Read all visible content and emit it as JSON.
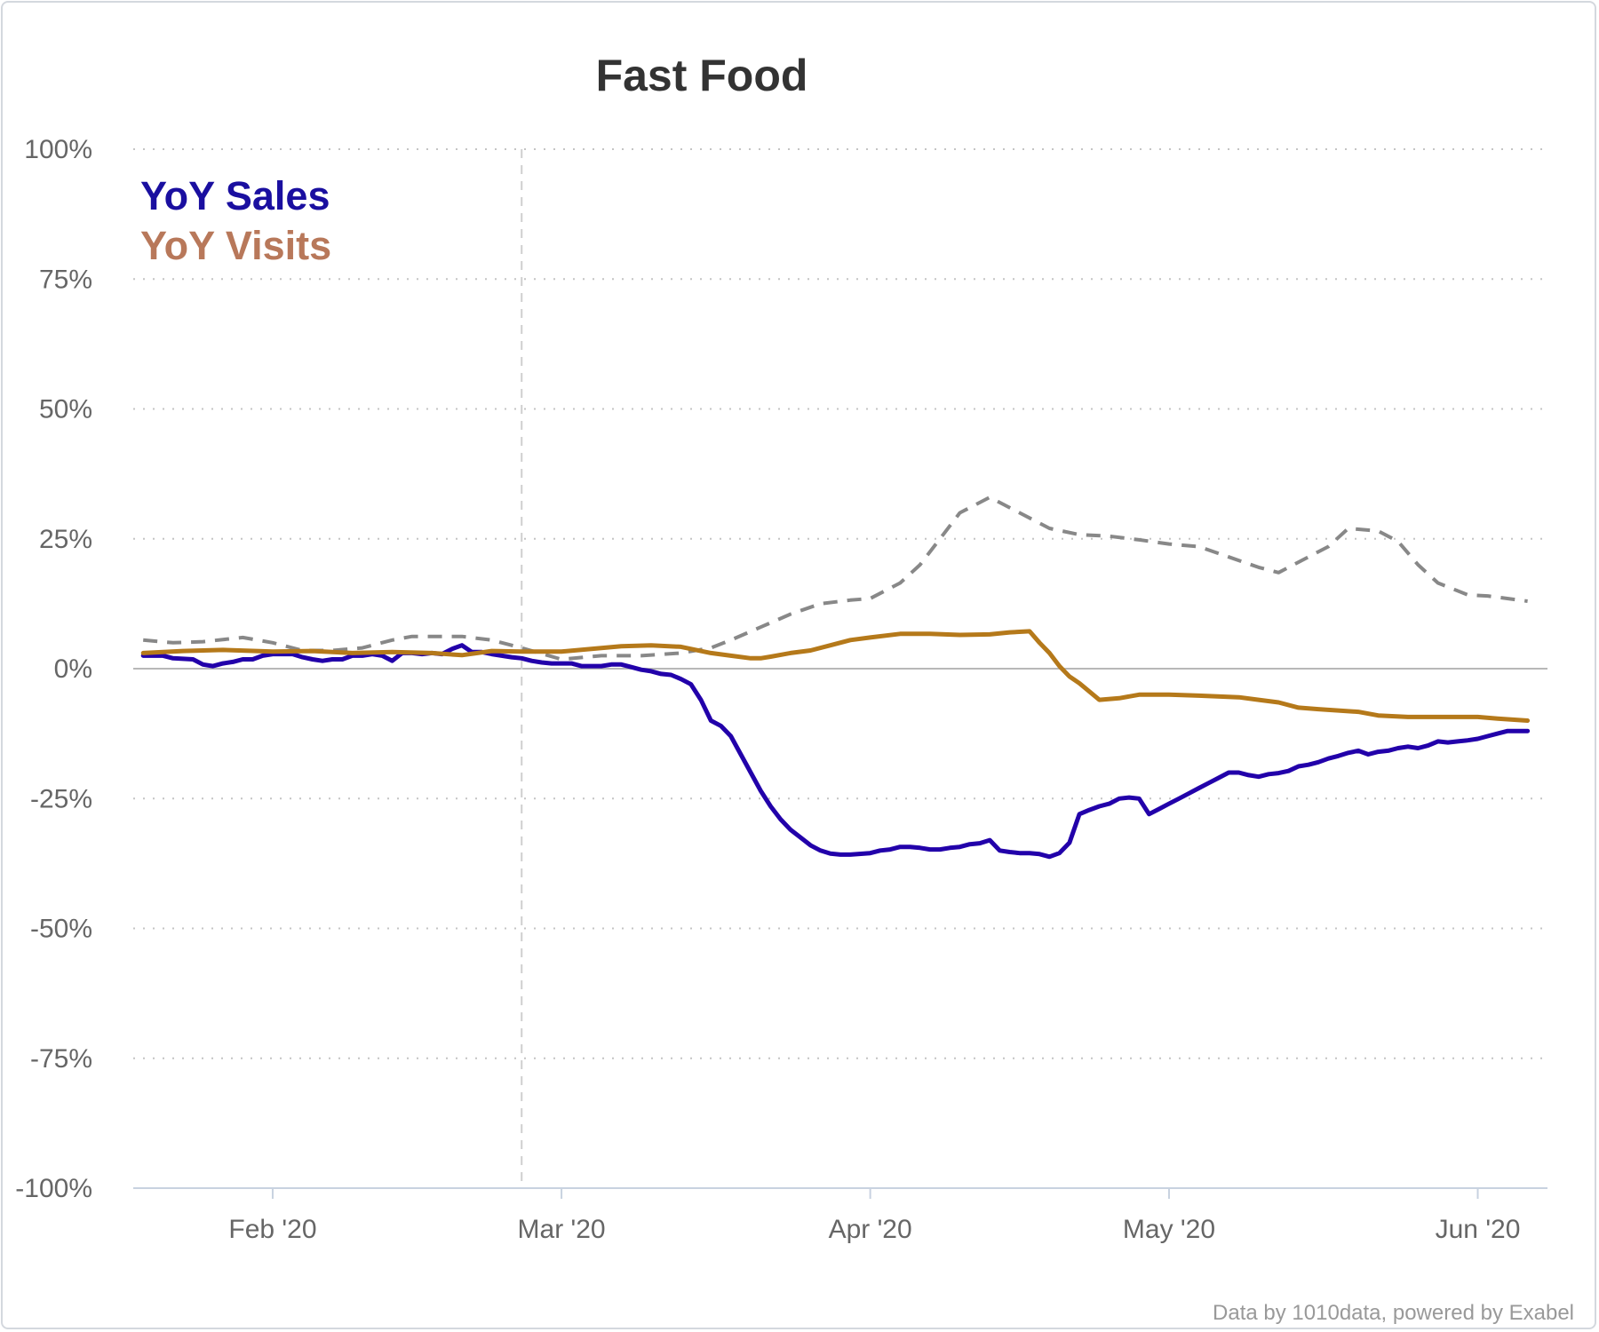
{
  "chart_data": {
    "type": "line",
    "title": "Fast Food",
    "credit": "Data by 1010data, powered by Exabel",
    "xlabel": "",
    "ylabel": "",
    "ylim": [
      -100,
      100
    ],
    "y_ticks": [
      100,
      75,
      50,
      25,
      0,
      -25,
      -50,
      -75,
      -100
    ],
    "y_tick_labels": [
      "100%",
      "75%",
      "50%",
      "25%",
      "0%",
      "-25%",
      "-50%",
      "-75%",
      "-100%"
    ],
    "xlim": [
      "2020-01-18",
      "2020-06-08"
    ],
    "x_ticks": [
      "2020-02-01",
      "2020-03-01",
      "2020-04-01",
      "2020-05-01",
      "2020-06-01"
    ],
    "x_tick_labels": [
      "Feb '20",
      "Mar '20",
      "Apr '20",
      "May '20",
      "Jun '20"
    ],
    "marker_date": "2020-02-26",
    "grid": true,
    "legend_position": "top-left",
    "series": [
      {
        "name": "YoY Sales",
        "color": "#2200aa",
        "style": "solid",
        "points": [
          [
            "2020-01-19",
            2.5
          ],
          [
            "2020-01-21",
            2.5
          ],
          [
            "2020-01-22",
            2.0
          ],
          [
            "2020-01-24",
            1.8
          ],
          [
            "2020-01-25",
            0.8
          ],
          [
            "2020-01-26",
            0.5
          ],
          [
            "2020-01-27",
            1.0
          ],
          [
            "2020-01-28",
            1.3
          ],
          [
            "2020-01-29",
            1.8
          ],
          [
            "2020-01-30",
            1.8
          ],
          [
            "2020-01-31",
            2.5
          ],
          [
            "2020-02-01",
            2.8
          ],
          [
            "2020-02-03",
            2.8
          ],
          [
            "2020-02-04",
            2.2
          ],
          [
            "2020-02-05",
            1.8
          ],
          [
            "2020-02-06",
            1.5
          ],
          [
            "2020-02-07",
            1.8
          ],
          [
            "2020-02-08",
            1.8
          ],
          [
            "2020-02-09",
            2.5
          ],
          [
            "2020-02-10",
            2.5
          ],
          [
            "2020-02-11",
            2.8
          ],
          [
            "2020-02-12",
            2.5
          ],
          [
            "2020-02-13",
            1.5
          ],
          [
            "2020-02-14",
            3.0
          ],
          [
            "2020-02-15",
            3.0
          ],
          [
            "2020-02-16",
            2.8
          ],
          [
            "2020-02-17",
            3.0
          ],
          [
            "2020-02-18",
            2.8
          ],
          [
            "2020-02-19",
            3.8
          ],
          [
            "2020-02-20",
            4.5
          ],
          [
            "2020-02-21",
            3.2
          ],
          [
            "2020-02-22",
            3.2
          ],
          [
            "2020-02-23",
            2.8
          ],
          [
            "2020-02-24",
            2.5
          ],
          [
            "2020-02-25",
            2.2
          ],
          [
            "2020-02-26",
            2.0
          ],
          [
            "2020-02-27",
            1.5
          ],
          [
            "2020-02-28",
            1.2
          ],
          [
            "2020-02-29",
            1.0
          ],
          [
            "2020-03-01",
            1.0
          ],
          [
            "2020-03-02",
            1.0
          ],
          [
            "2020-03-03",
            0.5
          ],
          [
            "2020-03-05",
            0.5
          ],
          [
            "2020-03-06",
            0.8
          ],
          [
            "2020-03-07",
            0.8
          ],
          [
            "2020-03-08",
            0.3
          ],
          [
            "2020-03-09",
            -0.2
          ],
          [
            "2020-03-10",
            -0.5
          ],
          [
            "2020-03-11",
            -1.0
          ],
          [
            "2020-03-12",
            -1.2
          ],
          [
            "2020-03-13",
            -2.0
          ],
          [
            "2020-03-14",
            -3.0
          ],
          [
            "2020-03-15",
            -6.0
          ],
          [
            "2020-03-16",
            -10.0
          ],
          [
            "2020-03-17",
            -11.0
          ],
          [
            "2020-03-18",
            -13.0
          ],
          [
            "2020-03-19",
            -16.5
          ],
          [
            "2020-03-20",
            -20.0
          ],
          [
            "2020-03-21",
            -23.5
          ],
          [
            "2020-03-22",
            -26.5
          ],
          [
            "2020-03-23",
            -29.0
          ],
          [
            "2020-03-24",
            -31.0
          ],
          [
            "2020-03-25",
            -32.5
          ],
          [
            "2020-03-26",
            -34.0
          ],
          [
            "2020-03-27",
            -35.0
          ],
          [
            "2020-03-28",
            -35.6
          ],
          [
            "2020-03-29",
            -35.8
          ],
          [
            "2020-03-30",
            -35.8
          ],
          [
            "2020-04-01",
            -35.5
          ],
          [
            "2020-04-02",
            -35.0
          ],
          [
            "2020-04-03",
            -34.8
          ],
          [
            "2020-04-04",
            -34.3
          ],
          [
            "2020-04-05",
            -34.3
          ],
          [
            "2020-04-06",
            -34.5
          ],
          [
            "2020-04-07",
            -34.8
          ],
          [
            "2020-04-08",
            -34.8
          ],
          [
            "2020-04-09",
            -34.5
          ],
          [
            "2020-04-10",
            -34.3
          ],
          [
            "2020-04-11",
            -33.8
          ],
          [
            "2020-04-12",
            -33.6
          ],
          [
            "2020-04-13",
            -33.0
          ],
          [
            "2020-04-14",
            -35.0
          ],
          [
            "2020-04-15",
            -35.3
          ],
          [
            "2020-04-16",
            -35.5
          ],
          [
            "2020-04-17",
            -35.5
          ],
          [
            "2020-04-18",
            -35.7
          ],
          [
            "2020-04-19",
            -36.2
          ],
          [
            "2020-04-20",
            -35.5
          ],
          [
            "2020-04-21",
            -33.5
          ],
          [
            "2020-04-22",
            -28.0
          ],
          [
            "2020-04-23",
            -27.2
          ],
          [
            "2020-04-24",
            -26.5
          ],
          [
            "2020-04-25",
            -26.0
          ],
          [
            "2020-04-26",
            -25.0
          ],
          [
            "2020-04-27",
            -24.8
          ],
          [
            "2020-04-28",
            -25.0
          ],
          [
            "2020-04-29",
            -28.0
          ],
          [
            "2020-04-30",
            -27.0
          ],
          [
            "2020-05-01",
            -26.0
          ],
          [
            "2020-05-02",
            -25.0
          ],
          [
            "2020-05-03",
            -24.0
          ],
          [
            "2020-05-04",
            -23.0
          ],
          [
            "2020-05-05",
            -22.0
          ],
          [
            "2020-05-06",
            -21.0
          ],
          [
            "2020-05-07",
            -20.0
          ],
          [
            "2020-05-08",
            -20.0
          ],
          [
            "2020-05-09",
            -20.5
          ],
          [
            "2020-05-10",
            -20.8
          ],
          [
            "2020-05-11",
            -20.3
          ],
          [
            "2020-05-12",
            -20.1
          ],
          [
            "2020-05-13",
            -19.7
          ],
          [
            "2020-05-14",
            -18.8
          ],
          [
            "2020-05-15",
            -18.5
          ],
          [
            "2020-05-16",
            -18.0
          ],
          [
            "2020-05-17",
            -17.3
          ],
          [
            "2020-05-18",
            -16.8
          ],
          [
            "2020-05-19",
            -16.2
          ],
          [
            "2020-05-20",
            -15.8
          ],
          [
            "2020-05-21",
            -16.5
          ],
          [
            "2020-05-22",
            -16.0
          ],
          [
            "2020-05-23",
            -15.8
          ],
          [
            "2020-05-24",
            -15.3
          ],
          [
            "2020-05-25",
            -15.0
          ],
          [
            "2020-05-26",
            -15.3
          ],
          [
            "2020-05-27",
            -14.8
          ],
          [
            "2020-05-28",
            -14.0
          ],
          [
            "2020-05-29",
            -14.2
          ],
          [
            "2020-05-30",
            -14.0
          ],
          [
            "2020-05-31",
            -13.8
          ],
          [
            "2020-06-01",
            -13.5
          ],
          [
            "2020-06-02",
            -13.0
          ],
          [
            "2020-06-03",
            -12.5
          ],
          [
            "2020-06-04",
            -12.0
          ],
          [
            "2020-06-05",
            -12.0
          ],
          [
            "2020-06-06",
            -12.0
          ]
        ]
      },
      {
        "name": "YoY Visits",
        "color": "#b5791a",
        "style": "solid",
        "points": [
          [
            "2020-01-19",
            3.0
          ],
          [
            "2020-01-23",
            3.4
          ],
          [
            "2020-01-27",
            3.6
          ],
          [
            "2020-02-01",
            3.3
          ],
          [
            "2020-02-05",
            3.4
          ],
          [
            "2020-02-09",
            3.0
          ],
          [
            "2020-02-13",
            3.2
          ],
          [
            "2020-02-17",
            3.0
          ],
          [
            "2020-02-20",
            2.6
          ],
          [
            "2020-02-23",
            3.4
          ],
          [
            "2020-02-26",
            3.3
          ],
          [
            "2020-03-01",
            3.3
          ],
          [
            "2020-03-04",
            3.8
          ],
          [
            "2020-03-07",
            4.3
          ],
          [
            "2020-03-10",
            4.5
          ],
          [
            "2020-03-13",
            4.2
          ],
          [
            "2020-03-16",
            3.0
          ],
          [
            "2020-03-18",
            2.5
          ],
          [
            "2020-03-20",
            2.0
          ],
          [
            "2020-03-21",
            2.0
          ],
          [
            "2020-03-22",
            2.3
          ],
          [
            "2020-03-24",
            3.0
          ],
          [
            "2020-03-26",
            3.5
          ],
          [
            "2020-03-28",
            4.5
          ],
          [
            "2020-03-30",
            5.5
          ],
          [
            "2020-04-01",
            6.0
          ],
          [
            "2020-04-04",
            6.7
          ],
          [
            "2020-04-07",
            6.7
          ],
          [
            "2020-04-10",
            6.5
          ],
          [
            "2020-04-13",
            6.6
          ],
          [
            "2020-04-15",
            7.0
          ],
          [
            "2020-04-17",
            7.2
          ],
          [
            "2020-04-18",
            5.0
          ],
          [
            "2020-04-19",
            3.0
          ],
          [
            "2020-04-20",
            0.5
          ],
          [
            "2020-04-21",
            -1.5
          ],
          [
            "2020-04-22",
            -2.8
          ],
          [
            "2020-04-24",
            -6.0
          ],
          [
            "2020-04-26",
            -5.7
          ],
          [
            "2020-04-28",
            -5.0
          ],
          [
            "2020-05-01",
            -5.0
          ],
          [
            "2020-05-04",
            -5.2
          ],
          [
            "2020-05-08",
            -5.5
          ],
          [
            "2020-05-10",
            -6.0
          ],
          [
            "2020-05-12",
            -6.5
          ],
          [
            "2020-05-14",
            -7.5
          ],
          [
            "2020-05-16",
            -7.8
          ],
          [
            "2020-05-20",
            -8.3
          ],
          [
            "2020-05-22",
            -9.0
          ],
          [
            "2020-05-25",
            -9.3
          ],
          [
            "2020-05-28",
            -9.3
          ],
          [
            "2020-06-01",
            -9.3
          ],
          [
            "2020-06-03",
            -9.6
          ],
          [
            "2020-06-06",
            -10.0
          ]
        ]
      },
      {
        "color": "#888888",
        "style": "dashed",
        "points": [
          [
            "2020-01-19",
            5.5
          ],
          [
            "2020-01-22",
            5.0
          ],
          [
            "2020-01-25",
            5.2
          ],
          [
            "2020-01-29",
            6.0
          ],
          [
            "2020-02-01",
            5.0
          ],
          [
            "2020-02-04",
            3.5
          ],
          [
            "2020-02-07",
            3.5
          ],
          [
            "2020-02-10",
            4.0
          ],
          [
            "2020-02-13",
            5.5
          ],
          [
            "2020-02-15",
            6.2
          ],
          [
            "2020-02-20",
            6.2
          ],
          [
            "2020-02-23",
            5.5
          ],
          [
            "2020-02-26",
            4.0
          ],
          [
            "2020-03-01",
            1.8
          ],
          [
            "2020-03-05",
            2.5
          ],
          [
            "2020-03-09",
            2.5
          ],
          [
            "2020-03-13",
            3.0
          ],
          [
            "2020-03-16",
            4.0
          ],
          [
            "2020-03-18",
            5.5
          ],
          [
            "2020-03-21",
            8.0
          ],
          [
            "2020-03-24",
            10.5
          ],
          [
            "2020-03-27",
            12.5
          ],
          [
            "2020-03-30",
            13.2
          ],
          [
            "2020-04-01",
            13.5
          ],
          [
            "2020-04-04",
            16.5
          ],
          [
            "2020-04-06",
            20.0
          ],
          [
            "2020-04-08",
            25.0
          ],
          [
            "2020-04-10",
            30.0
          ],
          [
            "2020-04-13",
            33.0
          ],
          [
            "2020-04-16",
            30.0
          ],
          [
            "2020-04-19",
            27.0
          ],
          [
            "2020-04-22",
            25.8
          ],
          [
            "2020-04-25",
            25.5
          ],
          [
            "2020-04-28",
            24.8
          ],
          [
            "2020-05-01",
            24.0
          ],
          [
            "2020-05-04",
            23.5
          ],
          [
            "2020-05-07",
            21.5
          ],
          [
            "2020-05-10",
            19.5
          ],
          [
            "2020-05-12",
            18.5
          ],
          [
            "2020-05-15",
            21.5
          ],
          [
            "2020-05-17",
            23.5
          ],
          [
            "2020-05-19",
            27.0
          ],
          [
            "2020-05-22",
            26.5
          ],
          [
            "2020-05-24",
            24.5
          ],
          [
            "2020-05-26",
            20.0
          ],
          [
            "2020-05-28",
            16.5
          ],
          [
            "2020-05-31",
            14.2
          ],
          [
            "2020-06-02",
            14.0
          ],
          [
            "2020-06-06",
            13.0
          ]
        ]
      }
    ]
  }
}
